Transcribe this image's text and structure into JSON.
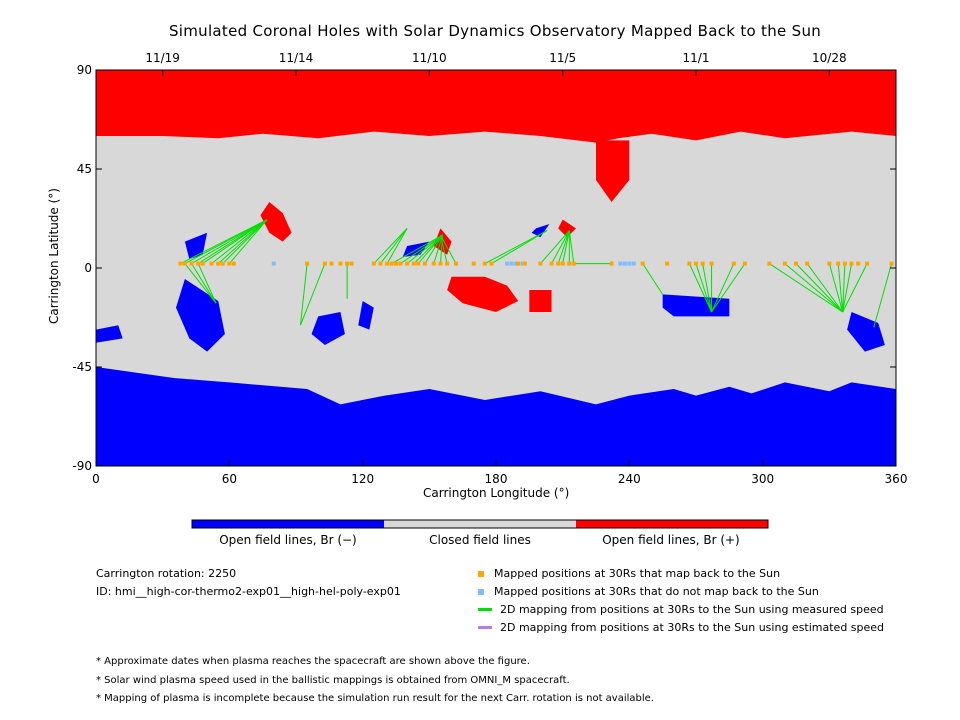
{
  "chart_data": {
    "type": "map",
    "title": "Simulated Coronal Holes with Solar Dynamics Observatory Mapped Back to the Sun",
    "xlabel": "Carrington Longitude (°)",
    "ylabel": "Carrington Latitude (°)",
    "xlim": [
      0,
      360
    ],
    "ylim": [
      -90,
      90
    ],
    "x_ticks": [
      0,
      60,
      120,
      180,
      240,
      300,
      360
    ],
    "y_ticks": [
      -90,
      -45,
      0,
      45,
      90
    ],
    "top_axis": {
      "labels": [
        "11/19",
        "11/14",
        "11/10",
        "11/5",
        "11/1",
        "10/28"
      ],
      "longitudes": [
        30,
        90,
        150,
        210,
        270,
        330
      ]
    },
    "colors": {
      "open_negative": "#0000ff",
      "closed": "#d8d8d8",
      "open_positive": "#ff0000",
      "mapped": "#ffa500",
      "unmapped": "#7fbfff",
      "measured": "#00e000",
      "estimated": "#b87cf0"
    },
    "regions": {
      "open_positive": [
        {
          "lon": [
            0,
            360,
            360,
            340,
            310,
            290,
            270,
            250,
            235,
            225,
            200,
            175,
            150,
            125,
            100,
            75,
            55,
            30,
            0
          ],
          "lat": [
            90,
            90,
            60,
            62,
            59,
            62,
            58,
            61,
            59,
            57,
            60,
            62,
            60,
            62,
            59,
            61,
            59,
            60,
            60
          ]
        },
        {
          "lon": [
            225,
            240,
            240,
            232,
            225
          ],
          "lat": [
            58,
            58,
            40,
            30,
            40
          ]
        },
        {
          "lon": [
            78,
            84,
            88,
            84,
            78,
            74
          ],
          "lat": [
            30,
            25,
            16,
            12,
            16,
            24
          ]
        },
        {
          "lon": [
            160,
            175,
            185,
            190,
            180,
            165,
            158
          ],
          "lat": [
            -4,
            -4,
            -8,
            -15,
            -20,
            -16,
            -10
          ]
        },
        {
          "lon": [
            195,
            205,
            205,
            195
          ],
          "lat": [
            -10,
            -10,
            -20,
            -20
          ]
        },
        {
          "lon": [
            210,
            216,
            212,
            208
          ],
          "lat": [
            22,
            18,
            14,
            18
          ]
        },
        {
          "lon": [
            155,
            160,
            158,
            152
          ],
          "lat": [
            18,
            12,
            6,
            10
          ]
        }
      ],
      "open_negative": [
        {
          "lon": [
            0,
            360,
            360,
            340,
            330,
            310,
            295,
            285,
            270,
            260,
            240,
            225,
            200,
            175,
            150,
            130,
            110,
            95,
            60,
            35,
            0
          ],
          "lat": [
            -90,
            -90,
            -55,
            -52,
            -56,
            -52,
            -57,
            -54,
            -58,
            -55,
            -58,
            -62,
            -56,
            -60,
            -55,
            -58,
            -62,
            -55,
            -52,
            -50,
            -45
          ]
        },
        {
          "lon": [
            40,
            55,
            58,
            50,
            42,
            36
          ],
          "lat": [
            -5,
            -15,
            -30,
            -38,
            -32,
            -18
          ]
        },
        {
          "lon": [
            100,
            110,
            112,
            103,
            97
          ],
          "lat": [
            -22,
            -20,
            -30,
            -35,
            -30
          ]
        },
        {
          "lon": [
            120,
            125,
            123,
            118
          ],
          "lat": [
            -15,
            -18,
            -28,
            -26
          ]
        },
        {
          "lon": [
            255,
            285,
            285,
            260,
            255
          ],
          "lat": [
            -12,
            -14,
            -22,
            -22,
            -18
          ]
        },
        {
          "lon": [
            340,
            352,
            355,
            346,
            338
          ],
          "lat": [
            -20,
            -25,
            -35,
            -38,
            -28
          ]
        },
        {
          "lon": [
            0,
            10,
            12,
            0
          ],
          "lat": [
            -28,
            -26,
            -32,
            -34
          ]
        },
        {
          "lon": [
            40,
            50,
            48,
            42
          ],
          "lat": [
            12,
            16,
            6,
            4
          ]
        },
        {
          "lon": [
            140,
            150,
            146,
            138
          ],
          "lat": [
            10,
            12,
            6,
            5
          ]
        },
        {
          "lon": [
            198,
            204,
            200,
            196
          ],
          "lat": [
            18,
            20,
            14,
            16
          ]
        }
      ]
    },
    "mapped_30Rs": {
      "lon": [
        38,
        40,
        43,
        46,
        48,
        52,
        55,
        57,
        60,
        62,
        95,
        103,
        106,
        110,
        113,
        115,
        125,
        128,
        131,
        133,
        135,
        137,
        140,
        143,
        145,
        148,
        152,
        155,
        158,
        162,
        170,
        175,
        178,
        190,
        193,
        200,
        205,
        208,
        210,
        213,
        215,
        232,
        246,
        257,
        267,
        270,
        273,
        277,
        287,
        292,
        303,
        310,
        315,
        320,
        330,
        334,
        337,
        340,
        343,
        347,
        358
      ],
      "lat": [
        2,
        2,
        2,
        2,
        2,
        2,
        2,
        2,
        2,
        2,
        2,
        2,
        2,
        2,
        2,
        2,
        2,
        2,
        2,
        2,
        2,
        2,
        2,
        2,
        2,
        2,
        2,
        2,
        2,
        2,
        2,
        2,
        2,
        2,
        2,
        2,
        2,
        2,
        2,
        2,
        2,
        2,
        2,
        2,
        2,
        2,
        2,
        2,
        2,
        2,
        2,
        2,
        2,
        2,
        2,
        2,
        2,
        2,
        2,
        2,
        2
      ]
    },
    "unmapped_30Rs": {
      "lon": [
        80,
        185,
        187,
        189,
        192,
        236,
        238,
        240,
        242
      ],
      "lat": [
        2,
        2,
        2,
        2,
        2,
        2,
        2,
        2,
        2
      ]
    },
    "measured_links": [
      {
        "from": [
          38,
          2
        ],
        "to": [
          77,
          22
        ]
      },
      {
        "from": [
          40,
          2
        ],
        "to": [
          77,
          22
        ]
      },
      {
        "from": [
          43,
          2
        ],
        "to": [
          77,
          22
        ]
      },
      {
        "from": [
          46,
          2
        ],
        "to": [
          77,
          22
        ]
      },
      {
        "from": [
          48,
          2
        ],
        "to": [
          77,
          22
        ]
      },
      {
        "from": [
          52,
          2
        ],
        "to": [
          77,
          22
        ]
      },
      {
        "from": [
          55,
          2
        ],
        "to": [
          77,
          22
        ]
      },
      {
        "from": [
          57,
          2
        ],
        "to": [
          77,
          22
        ]
      },
      {
        "from": [
          60,
          2
        ],
        "to": [
          77,
          22
        ]
      },
      {
        "from": [
          40,
          2
        ],
        "to": [
          54,
          -16
        ]
      },
      {
        "from": [
          43,
          2
        ],
        "to": [
          54,
          -16
        ]
      },
      {
        "from": [
          46,
          2
        ],
        "to": [
          54,
          -16
        ]
      },
      {
        "from": [
          95,
          2
        ],
        "to": [
          92,
          -26
        ]
      },
      {
        "from": [
          103,
          2
        ],
        "to": [
          92,
          -26
        ]
      },
      {
        "from": [
          113,
          2
        ],
        "to": [
          113,
          -14
        ]
      },
      {
        "from": [
          125,
          2
        ],
        "to": [
          140,
          18
        ]
      },
      {
        "from": [
          128,
          2
        ],
        "to": [
          140,
          18
        ]
      },
      {
        "from": [
          131,
          2
        ],
        "to": [
          140,
          18
        ]
      },
      {
        "from": [
          133,
          2
        ],
        "to": [
          156,
          15
        ]
      },
      {
        "from": [
          137,
          2
        ],
        "to": [
          156,
          15
        ]
      },
      {
        "from": [
          140,
          2
        ],
        "to": [
          156,
          15
        ]
      },
      {
        "from": [
          143,
          2
        ],
        "to": [
          156,
          15
        ]
      },
      {
        "from": [
          145,
          2
        ],
        "to": [
          156,
          15
        ]
      },
      {
        "from": [
          148,
          2
        ],
        "to": [
          156,
          15
        ]
      },
      {
        "from": [
          152,
          2
        ],
        "to": [
          156,
          15
        ]
      },
      {
        "from": [
          155,
          2
        ],
        "to": [
          156,
          15
        ]
      },
      {
        "from": [
          158,
          2
        ],
        "to": [
          155,
          15
        ]
      },
      {
        "from": [
          162,
          2
        ],
        "to": [
          155,
          15
        ]
      },
      {
        "from": [
          175,
          2
        ],
        "to": [
          203,
          17
        ]
      },
      {
        "from": [
          178,
          2
        ],
        "to": [
          203,
          17
        ]
      },
      {
        "from": [
          200,
          2
        ],
        "to": [
          213,
          17
        ]
      },
      {
        "from": [
          205,
          2
        ],
        "to": [
          213,
          17
        ]
      },
      {
        "from": [
          208,
          2
        ],
        "to": [
          213,
          17
        ]
      },
      {
        "from": [
          210,
          2
        ],
        "to": [
          213,
          17
        ]
      },
      {
        "from": [
          213,
          2
        ],
        "to": [
          213,
          17
        ]
      },
      {
        "from": [
          215,
          2
        ],
        "to": [
          213,
          17
        ]
      },
      {
        "from": [
          215,
          2
        ],
        "to": [
          232,
          2
        ]
      },
      {
        "from": [
          246,
          2
        ],
        "to": [
          255,
          -12
        ]
      },
      {
        "from": [
          267,
          2
        ],
        "to": [
          277,
          -20
        ]
      },
      {
        "from": [
          270,
          2
        ],
        "to": [
          277,
          -20
        ]
      },
      {
        "from": [
          273,
          2
        ],
        "to": [
          277,
          -20
        ]
      },
      {
        "from": [
          277,
          2
        ],
        "to": [
          277,
          -20
        ]
      },
      {
        "from": [
          287,
          2
        ],
        "to": [
          277,
          -20
        ]
      },
      {
        "from": [
          292,
          2
        ],
        "to": [
          277,
          -20
        ]
      },
      {
        "from": [
          303,
          2
        ],
        "to": [
          336,
          -20
        ]
      },
      {
        "from": [
          310,
          2
        ],
        "to": [
          336,
          -20
        ]
      },
      {
        "from": [
          315,
          2
        ],
        "to": [
          336,
          -20
        ]
      },
      {
        "from": [
          320,
          2
        ],
        "to": [
          336,
          -20
        ]
      },
      {
        "from": [
          330,
          2
        ],
        "to": [
          336,
          -20
        ]
      },
      {
        "from": [
          334,
          2
        ],
        "to": [
          336,
          -20
        ]
      },
      {
        "from": [
          337,
          2
        ],
        "to": [
          336,
          -20
        ]
      },
      {
        "from": [
          340,
          2
        ],
        "to": [
          336,
          -20
        ]
      },
      {
        "from": [
          347,
          2
        ],
        "to": [
          336,
          -20
        ]
      },
      {
        "from": [
          358,
          2
        ],
        "to": [
          350,
          -27
        ]
      }
    ],
    "colorbar": {
      "labels": [
        "Open field lines, Br (−)",
        "Closed field lines",
        "Open field lines, Br (+)"
      ]
    },
    "legend": {
      "items": [
        {
          "marker": "square",
          "color": "#ffa500",
          "label": "Mapped positions at 30Rs that map back to the Sun"
        },
        {
          "marker": "square",
          "color": "#7fbfff",
          "label": "Mapped positions at 30Rs that do not map back to the Sun"
        },
        {
          "marker": "line",
          "color": "#00e000",
          "label": "2D mapping from positions at 30Rs to the Sun using measured speed"
        },
        {
          "marker": "line",
          "color": "#b87cf0",
          "label": "2D mapping from positions at 30Rs to the Sun using estimated speed"
        }
      ]
    }
  },
  "info": {
    "carrington_rotation": "Carrington rotation: 2250",
    "run_id": "ID: hmi__high-cor-thermo2-exp01__high-hel-poly-exp01"
  },
  "notes": [
    "* Approximate dates when plasma reaches the spacecraft are shown above the figure.",
    "* Solar wind plasma speed used in the ballistic mappings is obtained from OMNI_M spacecraft.",
    "* Mapping of plasma is incomplete because the simulation run result for the next Carr. rotation is not available."
  ]
}
